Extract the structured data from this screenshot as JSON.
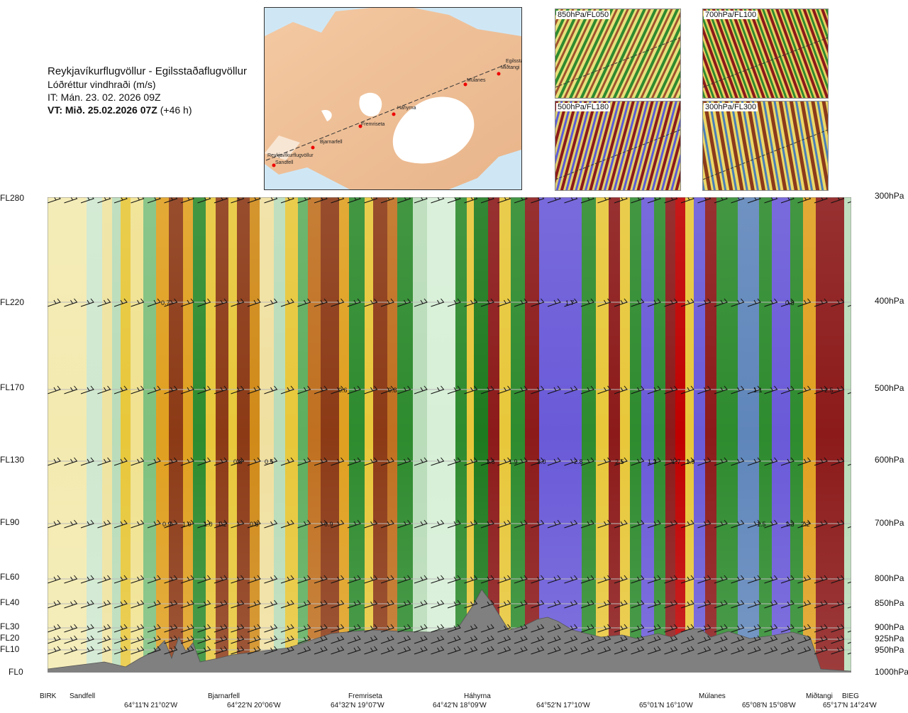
{
  "header": {
    "title": "Reykjavíkurflugvöllur - Egilsstaðaflugvöllur",
    "subtitle": "Lóðréttur vindhraði (m/s)",
    "issue_time": "IT: Mán. 23. 02. 2026 09Z",
    "valid_time": "VT: Mið. 25.02.2026 07Z",
    "valid_offset": "(+46 h)"
  },
  "map": {
    "stations": [
      "Reykjavíkurflugvöllur",
      "Sandfell",
      "Bjarnarfell",
      "Fremriseta",
      "Háhyrna",
      "Múlanes",
      "Miðtangi",
      "Egilsstaðir"
    ]
  },
  "thumbnails": [
    {
      "label": "850hPa/FL050"
    },
    {
      "label": "700hPa/FL100"
    },
    {
      "label": "500hPa/FL180"
    },
    {
      "label": "300hPa/FL300"
    }
  ],
  "axes": {
    "left": [
      {
        "fl": "FL280",
        "hpa": 300
      },
      {
        "fl": "FL220",
        "hpa": 400
      },
      {
        "fl": "FL170",
        "hpa": 500
      },
      {
        "fl": "FL130",
        "hpa": 600
      },
      {
        "fl": "FL90",
        "hpa": 700
      },
      {
        "fl": "FL60",
        "hpa": 800
      },
      {
        "fl": "FL40",
        "hpa": 850
      },
      {
        "fl": "FL30",
        "hpa": 900
      },
      {
        "fl": "FL20",
        "hpa": 925
      },
      {
        "fl": "FL10",
        "hpa": 950
      },
      {
        "fl": "FL0",
        "hpa": 1000
      }
    ],
    "right": [
      "300hPa",
      "400hPa",
      "500hPa",
      "600hPa",
      "700hPa",
      "800hPa",
      "850hPa",
      "900hPa",
      "925hPa",
      "950hPa",
      "1000hPa"
    ]
  },
  "bottom": {
    "locations": [
      "BIRK",
      "Sandfell",
      "Bjarnarfell",
      "Fremriseta",
      "Háhyrna",
      "Múlanes",
      "Miðtangi",
      "BIEG"
    ],
    "coordinates": [
      "64°11'N 21°02'W",
      "64°22'N 20°06'W",
      "64°32'N 19°07'W",
      "64°42'N 18°09'W",
      "64°52'N 17°10'W",
      "65°01'N 16°10'W",
      "65°08'N 15°08'W",
      "65°17'N 14°24'W"
    ]
  },
  "chart_data": {
    "type": "heatmap",
    "title": "Lóðréttur vindhraði (m/s)",
    "pressure_levels_hpa": [
      300,
      400,
      500,
      600,
      700,
      800,
      850,
      900,
      925,
      950,
      1000
    ],
    "annotations": [
      {
        "hpa": 400,
        "value": "0.7"
      },
      {
        "hpa": 400,
        "value": "1.7"
      },
      {
        "hpa": 400,
        "value": "1.2"
      },
      {
        "hpa": 400,
        "value": "0.8"
      },
      {
        "hpa": 500,
        "value": "0.6"
      },
      {
        "hpa": 500,
        "value": "0.8"
      },
      {
        "hpa": 500,
        "value": "1.1"
      },
      {
        "hpa": 500,
        "value": "2.5"
      },
      {
        "hpa": 600,
        "value": "0.8"
      },
      {
        "hpa": 600,
        "value": "0.5"
      },
      {
        "hpa": 600,
        "value": "1.6"
      },
      {
        "hpa": 600,
        "value": "1.9"
      },
      {
        "hpa": 600,
        "value": "2.0"
      },
      {
        "hpa": 600,
        "value": "2.8"
      },
      {
        "hpa": 600,
        "value": "2.5"
      },
      {
        "hpa": 600,
        "value": "1.3"
      },
      {
        "hpa": 600,
        "value": "1.7"
      },
      {
        "hpa": 600,
        "value": "1.9"
      },
      {
        "hpa": 700,
        "value": "0.9"
      },
      {
        "hpa": 700,
        "value": "1.0"
      },
      {
        "hpa": 700,
        "value": "1.0"
      },
      {
        "hpa": 700,
        "value": "1.2"
      },
      {
        "hpa": 700,
        "value": "0.8"
      },
      {
        "hpa": 700,
        "value": "0.9"
      },
      {
        "hpa": 700,
        "value": "1.5"
      },
      {
        "hpa": 700,
        "value": "1.3"
      },
      {
        "hpa": 700,
        "value": "2.2"
      }
    ]
  }
}
